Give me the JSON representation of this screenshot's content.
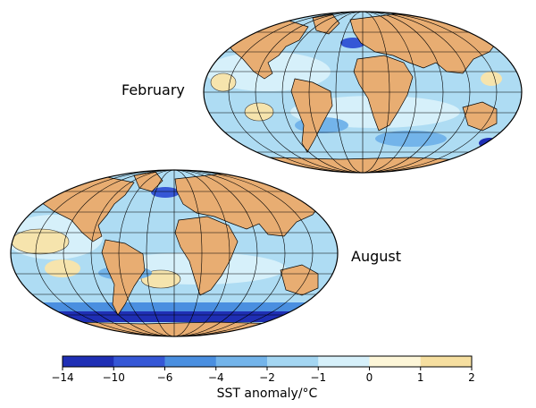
{
  "panels": [
    {
      "id": "feb",
      "label": "February"
    },
    {
      "id": "aug",
      "label": "August"
    }
  ],
  "colorbar": {
    "title": "SST anomaly/°C",
    "ticks": [
      "−14",
      "−10",
      "−6",
      "−4",
      "−2",
      "−1",
      "0",
      "1",
      "2"
    ],
    "colors": [
      "#1f2fb5",
      "#3557d6",
      "#4a8fe0",
      "#73b4ea",
      "#a4d6f2",
      "#d6f0fa",
      "#fdf6d8",
      "#f6dfa0"
    ]
  },
  "colors": {
    "land": "#e8ad72",
    "ocean_base": "#aedcf3",
    "ocean_light": "#d6f0fa",
    "warm": "#f6e4ad"
  }
}
